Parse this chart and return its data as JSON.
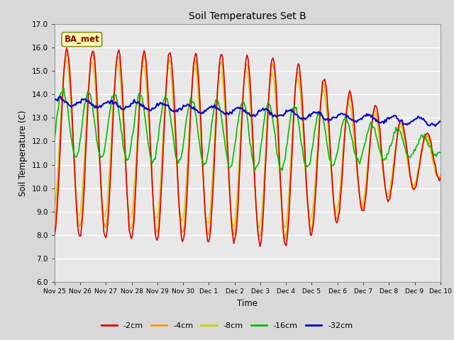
{
  "title": "Soil Temperatures Set B",
  "xlabel": "Time",
  "ylabel": "Soil Temperature (C)",
  "ylim": [
    6.0,
    17.0
  ],
  "yticks": [
    6.0,
    7.0,
    8.0,
    9.0,
    10.0,
    11.0,
    12.0,
    13.0,
    14.0,
    15.0,
    16.0,
    17.0
  ],
  "bg_color": "#d8d8d8",
  "plot_bg": "#e8e8e8",
  "legend_label": "BA_met",
  "series_colors": {
    "-2cm": "#dd0000",
    "-4cm": "#ff9900",
    "-8cm": "#cccc00",
    "-16cm": "#00bb00",
    "-32cm": "#0000cc"
  },
  "xtick_labels": [
    "Nov 25",
    "Nov 26",
    "Nov 27",
    "Nov 28",
    "Nov 29",
    "Nov 30",
    "Dec 1",
    "Dec 2",
    "Dec 3",
    "Dec 4",
    "Dec 5",
    "Dec 6",
    "Dec 7",
    "Dec 8",
    "Dec 9",
    "Dec 10"
  ],
  "n_points": 384,
  "legend_entries": [
    "-2cm",
    "-4cm",
    "-8cm",
    "-16cm",
    "-32cm"
  ]
}
